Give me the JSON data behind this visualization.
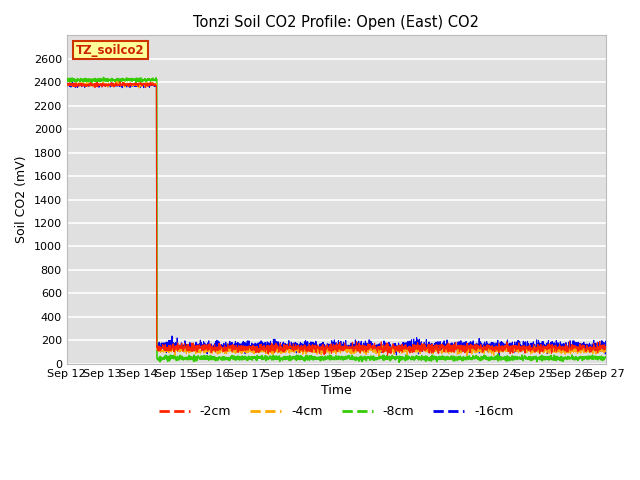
{
  "title": "Tonzi Soil CO2 Profile: Open (East) CO2",
  "ylabel": "Soil CO2 (mV)",
  "xlabel": "Time",
  "ylim": [
    0,
    2800
  ],
  "yticks": [
    0,
    200,
    400,
    600,
    800,
    1000,
    1200,
    1400,
    1600,
    1800,
    2000,
    2200,
    2400,
    2600
  ],
  "x_start_day": 12,
  "x_end_day": 27,
  "x_tick_days": [
    12,
    13,
    14,
    15,
    16,
    17,
    18,
    19,
    20,
    21,
    22,
    23,
    24,
    25,
    26,
    27
  ],
  "x_tick_labels": [
    "Sep 12",
    "Sep 13",
    "Sep 14",
    "Sep 15",
    "Sep 16",
    "Sep 17",
    "Sep 18",
    "Sep 19",
    "Sep 20",
    "Sep 21",
    "Sep 22",
    "Sep 23",
    "Sep 24",
    "Sep 25",
    "Sep 26",
    "Sep 27"
  ],
  "annotation_text": "TZ_soilco2",
  "annotation_box_facecolor": "#ffff99",
  "annotation_box_edgecolor": "#cc3300",
  "series_colors": {
    "-2cm": "#ff2200",
    "-4cm": "#ffaa00",
    "-8cm": "#33cc00",
    "-16cm": "#0000ee"
  },
  "legend_labels": [
    "-2cm",
    "-4cm",
    "-8cm",
    "-16cm"
  ],
  "background_color": "#e0e0e0",
  "grid_color": "#ffffff",
  "phase1_end_day": 14.5,
  "phase1_values": {
    "-2cm": 2380,
    "-4cm": 2380,
    "-8cm": 2420,
    "-16cm": 2375
  },
  "phase2_values": {
    "-2cm": 135,
    "-4cm": 115,
    "-8cm": 48,
    "-16cm": 150
  },
  "noise_amplitude": {
    "-2cm": 18,
    "-4cm": 14,
    "-8cm": 10,
    "-16cm": 22
  },
  "figsize": [
    6.4,
    4.8
  ],
  "dpi": 100
}
